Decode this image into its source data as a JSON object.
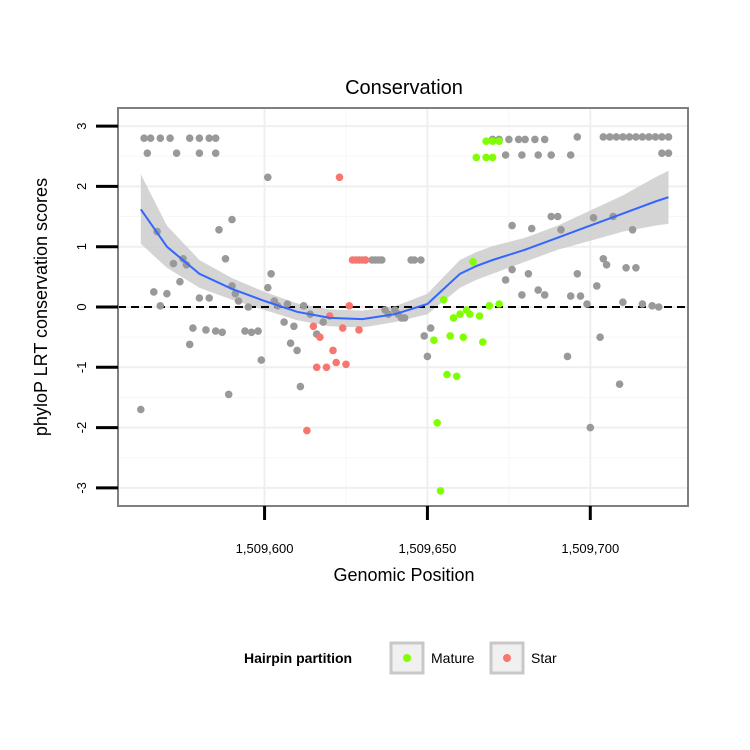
{
  "chart_data": {
    "type": "scatter",
    "title": "Conservation",
    "xlabel": "Genomic Position",
    "ylabel": "phyloP LRT conservation scores",
    "xlim": [
      1509555,
      1509730
    ],
    "ylim": [
      -3.3,
      3.3
    ],
    "x_ticks": [
      1509600,
      1509650,
      1509700
    ],
    "x_tick_labels": [
      "1,509,600",
      "1,509,650",
      "1,509,700"
    ],
    "y_ticks": [
      -3,
      -2,
      -1,
      0,
      1,
      2,
      3
    ],
    "y_tick_labels": [
      "-3",
      "-2",
      "-1",
      "0",
      "1",
      "2",
      "3"
    ],
    "grid": true,
    "reference_line": {
      "y": 0,
      "style": "dashed"
    },
    "legend": {
      "title": "Hairpin partition",
      "position": "bottom",
      "entries": [
        {
          "label": "Mature",
          "color": "#7fff00"
        },
        {
          "label": "Star",
          "color": "#f8766d"
        }
      ]
    },
    "colors": {
      "other": "#999999",
      "smooth_line": "#3366ff",
      "ribbon": "#cccccc"
    },
    "series": [
      {
        "group": "other",
        "points": [
          [
            1509563,
            2.8
          ],
          [
            1509565,
            2.8
          ],
          [
            1509568,
            2.8
          ],
          [
            1509571,
            2.8
          ],
          [
            1509577,
            2.8
          ],
          [
            1509580,
            2.8
          ],
          [
            1509583,
            2.8
          ],
          [
            1509585,
            2.8
          ],
          [
            1509564,
            2.55
          ],
          [
            1509573,
            2.55
          ],
          [
            1509580,
            2.55
          ],
          [
            1509585,
            2.55
          ],
          [
            1509567,
            1.25
          ],
          [
            1509586,
            1.28
          ],
          [
            1509590,
            1.45
          ],
          [
            1509601,
            2.15
          ],
          [
            1509562,
            -1.7
          ],
          [
            1509566,
            0.25
          ],
          [
            1509568,
            0.02
          ],
          [
            1509570,
            0.22
          ],
          [
            1509572,
            0.72
          ],
          [
            1509574,
            0.42
          ],
          [
            1509575,
            0.8
          ],
          [
            1509576,
            0.7
          ],
          [
            1509577,
            -0.62
          ],
          [
            1509578,
            -0.35
          ],
          [
            1509580,
            0.15
          ],
          [
            1509582,
            -0.38
          ],
          [
            1509583,
            0.15
          ],
          [
            1509585,
            -0.4
          ],
          [
            1509587,
            -0.42
          ],
          [
            1509588,
            0.8
          ],
          [
            1509589,
            -1.45
          ],
          [
            1509590,
            0.35
          ],
          [
            1509591,
            0.22
          ],
          [
            1509592,
            0.1
          ],
          [
            1509594,
            -0.4
          ],
          [
            1509595,
            0.0
          ],
          [
            1509596,
            -0.42
          ],
          [
            1509598,
            -0.4
          ],
          [
            1509599,
            -0.88
          ],
          [
            1509601,
            0.32
          ],
          [
            1509602,
            0.55
          ],
          [
            1509603,
            0.1
          ],
          [
            1509604,
            0.02
          ],
          [
            1509606,
            -0.25
          ],
          [
            1509607,
            0.05
          ],
          [
            1509608,
            -0.6
          ],
          [
            1509609,
            -0.32
          ],
          [
            1509610,
            -0.72
          ],
          [
            1509611,
            -1.32
          ],
          [
            1509612,
            0.02
          ],
          [
            1509614,
            -0.12
          ],
          [
            1509616,
            -0.45
          ],
          [
            1509618,
            -0.25
          ],
          [
            1509629,
            0.78
          ],
          [
            1509631,
            0.78
          ],
          [
            1509633,
            0.78
          ],
          [
            1509634,
            0.78
          ],
          [
            1509635,
            0.78
          ],
          [
            1509636,
            0.78
          ],
          [
            1509637,
            -0.05
          ],
          [
            1509638,
            -0.12
          ],
          [
            1509640,
            -0.05
          ],
          [
            1509641,
            -0.12
          ],
          [
            1509642,
            -0.18
          ],
          [
            1509643,
            -0.18
          ],
          [
            1509645,
            0.78
          ],
          [
            1509646,
            0.78
          ],
          [
            1509648,
            0.78
          ],
          [
            1509649,
            -0.48
          ],
          [
            1509650,
            -0.82
          ],
          [
            1509651,
            -0.35
          ],
          [
            1509670,
            2.78
          ],
          [
            1509672,
            2.78
          ],
          [
            1509675,
            2.78
          ],
          [
            1509678,
            2.78
          ],
          [
            1509680,
            2.78
          ],
          [
            1509683,
            2.78
          ],
          [
            1509686,
            2.78
          ],
          [
            1509674,
            2.52
          ],
          [
            1509679,
            2.52
          ],
          [
            1509684,
            2.52
          ],
          [
            1509688,
            2.52
          ],
          [
            1509694,
            2.52
          ],
          [
            1509696,
            2.82
          ],
          [
            1509704,
            2.82
          ],
          [
            1509706,
            2.82
          ],
          [
            1509708,
            2.82
          ],
          [
            1509710,
            2.82
          ],
          [
            1509712,
            2.82
          ],
          [
            1509714,
            2.82
          ],
          [
            1509716,
            2.82
          ],
          [
            1509718,
            2.82
          ],
          [
            1509720,
            2.82
          ],
          [
            1509722,
            2.82
          ],
          [
            1509724,
            2.82
          ],
          [
            1509722,
            2.55
          ],
          [
            1509724,
            2.55
          ],
          [
            1509674,
            0.45
          ],
          [
            1509676,
            0.62
          ],
          [
            1509679,
            0.2
          ],
          [
            1509681,
            0.55
          ],
          [
            1509684,
            0.28
          ],
          [
            1509686,
            0.2
          ],
          [
            1509688,
            1.5
          ],
          [
            1509690,
            1.5
          ],
          [
            1509691,
            1.28
          ],
          [
            1509693,
            -0.82
          ],
          [
            1509694,
            0.18
          ],
          [
            1509696,
            0.55
          ],
          [
            1509697,
            0.18
          ],
          [
            1509699,
            0.05
          ],
          [
            1509700,
            -2.0
          ],
          [
            1509701,
            1.48
          ],
          [
            1509702,
            0.35
          ],
          [
            1509703,
            -0.5
          ],
          [
            1509704,
            0.8
          ],
          [
            1509705,
            0.7
          ],
          [
            1509707,
            1.5
          ],
          [
            1509709,
            -1.28
          ],
          [
            1509710,
            0.08
          ],
          [
            1509711,
            0.65
          ],
          [
            1509713,
            1.28
          ],
          [
            1509714,
            0.65
          ],
          [
            1509716,
            0.05
          ],
          [
            1509719,
            0.02
          ],
          [
            1509721,
            0.0
          ],
          [
            1509676,
            1.35
          ],
          [
            1509682,
            1.3
          ]
        ]
      },
      {
        "group": "Mature",
        "points": [
          [
            1509653,
            -1.92
          ],
          [
            1509654,
            -3.05
          ],
          [
            1509655,
            0.12
          ],
          [
            1509656,
            -1.12
          ],
          [
            1509657,
            -0.48
          ],
          [
            1509658,
            -0.18
          ],
          [
            1509659,
            -1.15
          ],
          [
            1509660,
            -0.12
          ],
          [
            1509661,
            -0.5
          ],
          [
            1509662,
            -0.05
          ],
          [
            1509663,
            -0.12
          ],
          [
            1509664,
            0.75
          ],
          [
            1509665,
            2.48
          ],
          [
            1509666,
            -0.15
          ],
          [
            1509667,
            -0.58
          ],
          [
            1509668,
            2.48
          ],
          [
            1509669,
            0.02
          ],
          [
            1509670,
            2.48
          ],
          [
            1509672,
            0.05
          ],
          [
            1509668,
            2.75
          ],
          [
            1509670,
            2.75
          ],
          [
            1509672,
            2.75
          ],
          [
            1509652,
            -0.55
          ]
        ]
      },
      {
        "group": "Star",
        "points": [
          [
            1509613,
            -2.05
          ],
          [
            1509615,
            -0.32
          ],
          [
            1509616,
            -1.0
          ],
          [
            1509617,
            -0.5
          ],
          [
            1509619,
            -1.0
          ],
          [
            1509620,
            -0.15
          ],
          [
            1509621,
            -0.72
          ],
          [
            1509622,
            -0.92
          ],
          [
            1509623,
            2.15
          ],
          [
            1509624,
            -0.35
          ],
          [
            1509625,
            -0.95
          ],
          [
            1509626,
            0.02
          ],
          [
            1509627,
            0.78
          ],
          [
            1509628,
            0.78
          ],
          [
            1509629,
            -0.38
          ],
          [
            1509630,
            0.78
          ],
          [
            1509631,
            0.78
          ]
        ]
      }
    ],
    "smooth": {
      "x": [
        1509562,
        1509570,
        1509580,
        1509590,
        1509600,
        1509610,
        1509620,
        1509630,
        1509640,
        1509650,
        1509655,
        1509660,
        1509665,
        1509670,
        1509680,
        1509690,
        1509700,
        1509710,
        1509720,
        1509724
      ],
      "y": [
        1.62,
        1.0,
        0.55,
        0.3,
        0.1,
        -0.08,
        -0.18,
        -0.2,
        -0.12,
        0.05,
        0.3,
        0.55,
        0.68,
        0.78,
        0.95,
        1.15,
        1.35,
        1.55,
        1.75,
        1.82
      ],
      "lower": [
        1.05,
        0.65,
        0.32,
        0.12,
        -0.05,
        -0.22,
        -0.32,
        -0.34,
        -0.25,
        -0.12,
        0.1,
        0.32,
        0.45,
        0.55,
        0.75,
        0.95,
        1.1,
        1.25,
        1.35,
        1.38
      ],
      "upper": [
        2.2,
        1.35,
        0.78,
        0.48,
        0.25,
        0.06,
        -0.04,
        -0.06,
        0.01,
        0.22,
        0.5,
        0.78,
        0.91,
        1.01,
        1.15,
        1.35,
        1.6,
        1.85,
        2.15,
        2.26
      ]
    }
  }
}
